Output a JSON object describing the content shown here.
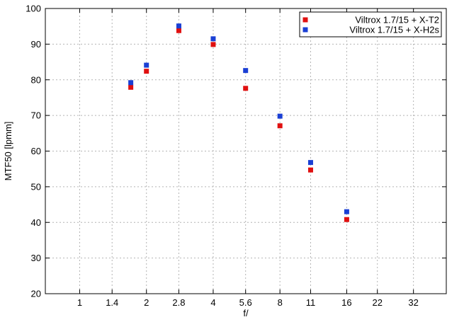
{
  "chart_data": {
    "type": "scatter",
    "title": "",
    "xlabel": "f/",
    "ylabel": "MTF50 [lpmm]",
    "x_scale": "log",
    "x_ticks": [
      "1",
      "1.4",
      "2",
      "2.8",
      "4",
      "5.6",
      "8",
      "11",
      "16",
      "22",
      "32"
    ],
    "x_tick_values": [
      1,
      1.4,
      2,
      2.8,
      4,
      5.6,
      8,
      11,
      16,
      22,
      32
    ],
    "xlim": [
      0.7,
      45
    ],
    "ylim": [
      20,
      100
    ],
    "y_ticks": [
      "20",
      "30",
      "40",
      "50",
      "60",
      "70",
      "80",
      "90",
      "100"
    ],
    "y_tick_values": [
      20,
      30,
      40,
      50,
      60,
      70,
      80,
      90,
      100
    ],
    "grid": true,
    "legend_position": "top-right",
    "series": [
      {
        "name": "Viltrox 1.7/15 + X-T2",
        "color": "#e01010",
        "x": [
          1.7,
          2,
          2.8,
          4,
          5.6,
          8,
          11,
          16
        ],
        "y": [
          77.9,
          82.4,
          93.8,
          89.9,
          77.6,
          67.1,
          54.7,
          40.8
        ]
      },
      {
        "name": "Viltrox 1.7/15 + X-H2s",
        "color": "#1a3fd4",
        "x": [
          1.7,
          2,
          2.8,
          4,
          5.6,
          8,
          11,
          16
        ],
        "y": [
          79.2,
          84.1,
          95.1,
          91.5,
          82.6,
          69.8,
          56.8,
          43.0
        ]
      }
    ]
  }
}
